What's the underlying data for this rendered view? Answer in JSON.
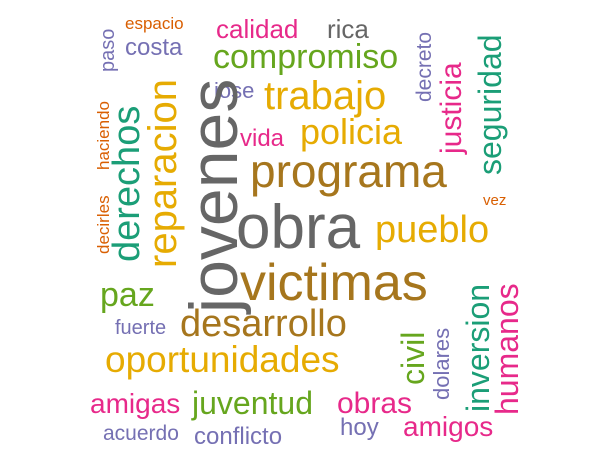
{
  "colors": {
    "gray": "#666666",
    "brown": "#a6761d",
    "gold": "#e6ab02",
    "green": "#66a61e",
    "teal": "#1b9e77",
    "orange": "#d95f02",
    "magenta": "#e7298a",
    "purple": "#7570b3"
  },
  "words": [
    "obra",
    "jovenes",
    "victimas",
    "programa",
    "desarrollo",
    "oportunidades",
    "trabajo",
    "compromiso",
    "pueblo",
    "policia",
    "reparacion",
    "derechos",
    "justicia",
    "seguridad",
    "paz",
    "inversion",
    "humanos",
    "civil",
    "dolares",
    "juventud",
    "obras",
    "amigas",
    "amigos",
    "calidad",
    "rica",
    "espacio",
    "paso",
    "costa",
    "jose",
    "vida",
    "decreto",
    "haciendo",
    "decirles",
    "vez",
    "fuerte",
    "acuerdo",
    "conflicto",
    "hoy"
  ]
}
